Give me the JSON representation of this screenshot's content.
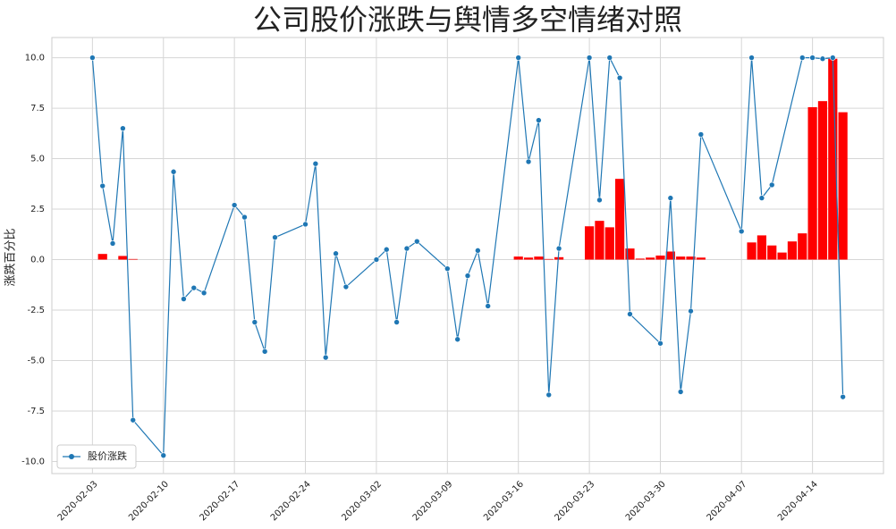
{
  "chart_data": {
    "type": "line",
    "title": "公司股价涨跌与舆情多空情绪对照",
    "ylabel": "涨跌百分比",
    "xlim": [
      "2020-01-30",
      "2020-04-21"
    ],
    "ylim": [
      -10.6,
      11.0
    ],
    "xticks": [
      "2020-02-03",
      "2020-02-10",
      "2020-02-17",
      "2020-02-24",
      "2020-03-02",
      "2020-03-09",
      "2020-03-16",
      "2020-03-23",
      "2020-03-30",
      "2020-04-07",
      "2020-04-14"
    ],
    "yticks": [
      {
        "value": -10,
        "label": "-10.0"
      },
      {
        "value": -7.5,
        "label": "-7.5"
      },
      {
        "value": -5,
        "label": "-5.0"
      },
      {
        "value": -2.5,
        "label": "-2.5"
      },
      {
        "value": 0,
        "label": "0.0"
      },
      {
        "value": 2.5,
        "label": "2.5"
      },
      {
        "value": 5,
        "label": "5.0"
      },
      {
        "value": 7.5,
        "label": "7.5"
      },
      {
        "value": 10,
        "label": "10.0"
      }
    ],
    "grid": true,
    "legend": "lower left",
    "series": [
      {
        "name": "股价涨跌",
        "type": "line",
        "color": "#1f77b4",
        "x": [
          "2020-02-03",
          "2020-02-04",
          "2020-02-05",
          "2020-02-06",
          "2020-02-07",
          "2020-02-10",
          "2020-02-11",
          "2020-02-12",
          "2020-02-13",
          "2020-02-14",
          "2020-02-17",
          "2020-02-18",
          "2020-02-19",
          "2020-02-20",
          "2020-02-21",
          "2020-02-24",
          "2020-02-25",
          "2020-02-26",
          "2020-02-27",
          "2020-02-28",
          "2020-03-02",
          "2020-03-03",
          "2020-03-04",
          "2020-03-05",
          "2020-03-06",
          "2020-03-09",
          "2020-03-10",
          "2020-03-11",
          "2020-03-12",
          "2020-03-13",
          "2020-03-16",
          "2020-03-17",
          "2020-03-18",
          "2020-03-19",
          "2020-03-20",
          "2020-03-23",
          "2020-03-24",
          "2020-03-25",
          "2020-03-26",
          "2020-03-27",
          "2020-03-30",
          "2020-03-31",
          "2020-04-01",
          "2020-04-02",
          "2020-04-03",
          "2020-04-07",
          "2020-04-08",
          "2020-04-09",
          "2020-04-10",
          "2020-04-13",
          "2020-04-14",
          "2020-04-15",
          "2020-04-16",
          "2020-04-17"
        ],
        "values": [
          10.0,
          3.65,
          0.8,
          6.5,
          -7.95,
          -9.7,
          4.35,
          -1.95,
          -1.4,
          -1.65,
          2.7,
          2.1,
          -3.1,
          -4.55,
          1.1,
          1.75,
          4.75,
          -4.85,
          0.3,
          -1.35,
          0.0,
          0.5,
          -3.1,
          0.55,
          0.9,
          -0.45,
          -3.95,
          -0.8,
          0.45,
          -2.3,
          10.0,
          4.85,
          6.9,
          -6.7,
          0.55,
          10.0,
          2.95,
          10.0,
          9.0,
          -2.7,
          -4.15,
          3.05,
          -6.55,
          -2.55,
          6.2,
          1.4,
          10.0,
          3.05,
          3.7,
          10.0,
          10.0,
          9.95,
          10.0,
          -6.8
        ]
      },
      {
        "type": "bar",
        "color": "#ff0000",
        "x": [
          "2020-02-04",
          "2020-02-06",
          "2020-02-07",
          "2020-03-16",
          "2020-03-17",
          "2020-03-18",
          "2020-03-19",
          "2020-03-20",
          "2020-03-23",
          "2020-03-24",
          "2020-03-25",
          "2020-03-26",
          "2020-03-27",
          "2020-03-28",
          "2020-03-29",
          "2020-03-30",
          "2020-03-31",
          "2020-04-01",
          "2020-04-02",
          "2020-04-03",
          "2020-04-08",
          "2020-04-09",
          "2020-04-10",
          "2020-04-11",
          "2020-04-12",
          "2020-04-13",
          "2020-04-14",
          "2020-04-15",
          "2020-04-16",
          "2020-04-17"
        ],
        "values": [
          0.28,
          0.18,
          0.03,
          0.15,
          0.1,
          0.15,
          0.03,
          0.12,
          1.65,
          1.92,
          1.6,
          4.0,
          0.55,
          0.05,
          0.1,
          0.2,
          0.4,
          0.15,
          0.15,
          0.1,
          0.85,
          1.2,
          0.7,
          0.35,
          0.9,
          1.3,
          7.55,
          7.85,
          9.95,
          7.3
        ]
      }
    ]
  }
}
